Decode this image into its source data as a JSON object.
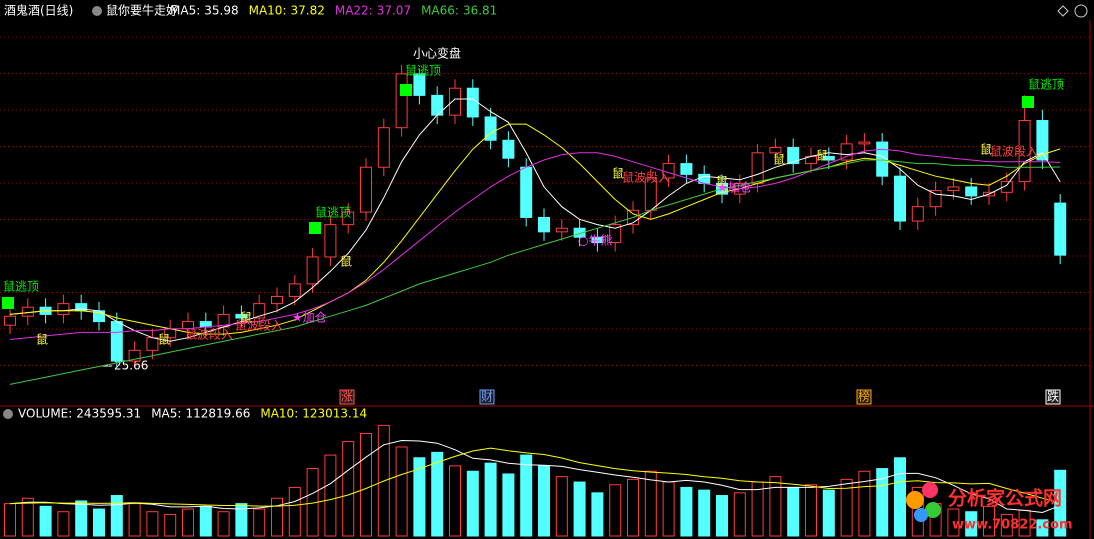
{
  "header": {
    "title": "酒鬼酒(日线)",
    "formula": "鼠你要牛走好"
  },
  "chart_data": [
    {
      "type": "candlestick",
      "open": [
        28.0,
        28.5,
        29.0,
        28.6,
        29.2,
        28.8,
        28.2,
        26.0,
        26.6,
        27.3,
        27.8,
        28.2,
        27.9,
        28.6,
        28.4,
        29.2,
        29.6,
        30.3,
        31.8,
        33.6,
        34.3,
        36.8,
        39.0,
        42.0,
        40.8,
        39.7,
        41.2,
        39.6,
        38.3,
        36.8,
        34.0,
        33.2,
        33.4,
        32.9,
        32.6,
        33.6,
        34.4,
        36.2,
        37.0,
        36.4,
        35.9,
        35.3,
        35.9,
        37.6,
        37.9,
        37.0,
        37.4,
        37.2,
        38.1,
        38.2,
        36.3,
        33.8,
        34.6,
        35.5,
        35.7,
        35.2,
        35.4,
        36.0,
        39.4,
        34.8
      ],
      "high": [
        29.0,
        29.5,
        29.5,
        29.7,
        29.7,
        29.3,
        28.7,
        27.1,
        27.8,
        28.3,
        28.7,
        28.7,
        29.1,
        29.1,
        29.7,
        30.1,
        30.8,
        32.3,
        34.1,
        34.8,
        37.3,
        39.5,
        42.5,
        42.3,
        41.3,
        41.7,
        41.7,
        40.1,
        38.8,
        37.3,
        34.5,
        33.9,
        33.9,
        33.4,
        34.1,
        34.9,
        36.7,
        37.5,
        37.5,
        36.9,
        36.4,
        36.4,
        38.1,
        38.4,
        38.4,
        37.9,
        37.9,
        38.6,
        38.7,
        38.7,
        36.8,
        35.1,
        36.0,
        36.2,
        36.2,
        35.9,
        36.5,
        40.8,
        40.0,
        35.3
      ],
      "low": [
        27.5,
        28.0,
        28.1,
        28.1,
        28.3,
        27.7,
        25.66,
        25.8,
        26.1,
        26.8,
        27.3,
        27.4,
        27.4,
        27.9,
        27.9,
        28.7,
        29.1,
        29.8,
        31.3,
        33.1,
        33.8,
        36.3,
        38.5,
        40.3,
        39.2,
        39.2,
        39.1,
        37.8,
        36.8,
        33.5,
        32.7,
        32.7,
        32.4,
        32.1,
        32.1,
        33.1,
        33.9,
        35.7,
        35.9,
        35.4,
        34.8,
        34.8,
        35.4,
        37.1,
        36.5,
        36.5,
        36.7,
        36.7,
        37.6,
        35.8,
        33.3,
        33.3,
        34.1,
        35.0,
        34.7,
        34.7,
        34.9,
        35.5,
        36.7,
        31.4
      ],
      "close": [
        28.5,
        29.0,
        28.6,
        29.2,
        28.8,
        28.2,
        26.0,
        26.6,
        27.3,
        27.8,
        28.2,
        27.9,
        28.6,
        28.4,
        29.2,
        29.6,
        30.3,
        31.8,
        33.6,
        34.3,
        36.8,
        39.0,
        42.0,
        40.8,
        39.7,
        41.2,
        39.6,
        38.3,
        37.3,
        34.0,
        33.2,
        33.4,
        32.9,
        32.6,
        33.6,
        34.4,
        36.2,
        37.0,
        36.4,
        35.9,
        35.3,
        35.9,
        37.6,
        37.9,
        37.0,
        37.4,
        37.2,
        38.1,
        38.2,
        36.3,
        33.8,
        34.6,
        35.5,
        35.7,
        35.2,
        35.4,
        36.0,
        39.4,
        37.2,
        31.9
      ],
      "ylim": [
        24.5,
        45
      ],
      "series": [
        {
          "name": "MA5:",
          "color": "#ffffff",
          "values": [
            28.6,
            28.7,
            28.8,
            28.8,
            28.9,
            28.8,
            28.2,
            27.7,
            27.3,
            27.1,
            27.3,
            27.6,
            27.9,
            28.2,
            28.5,
            28.8,
            29.3,
            30.1,
            31.0,
            32.0,
            33.3,
            35.1,
            37.1,
            38.6,
            39.7,
            40.6,
            40.6,
            39.9,
            39.3,
            37.6,
            35.7,
            34.6,
            33.9,
            33.6,
            33.4,
            33.7,
            34.4,
            35.2,
            35.9,
            36.3,
            36.2,
            36.1,
            36.4,
            36.8,
            37.1,
            37.4,
            37.6,
            37.5,
            37.6,
            37.4,
            36.7,
            35.8,
            35.3,
            35.2,
            35.0,
            35.3,
            35.8,
            37.1,
            37.6,
            35.98
          ]
        },
        {
          "name": "MA10:",
          "color": "#ffff00",
          "values": [
            28.6,
            28.7,
            28.8,
            28.8,
            28.8,
            28.7,
            28.4,
            28.2,
            28.0,
            27.8,
            27.6,
            27.5,
            27.5,
            27.6,
            27.8,
            28.0,
            28.3,
            28.8,
            29.3,
            29.8,
            30.5,
            31.5,
            32.7,
            34.0,
            35.3,
            36.6,
            37.8,
            38.7,
            39.2,
            39.2,
            38.6,
            37.9,
            37.0,
            36.0,
            35.0,
            34.2,
            33.9,
            34.2,
            34.6,
            35.0,
            35.4,
            35.6,
            35.9,
            36.2,
            36.4,
            36.6,
            36.8,
            37.1,
            37.3,
            37.2,
            36.9,
            36.6,
            36.3,
            36.1,
            35.9,
            35.8,
            36.3,
            37.0,
            37.5,
            37.82
          ]
        },
        {
          "name": "MA22:",
          "color": "#e030e0",
          "values": [
            27.2,
            27.3,
            27.4,
            27.5,
            27.6,
            27.6,
            27.6,
            27.7,
            27.7,
            27.8,
            27.8,
            27.9,
            28.0,
            28.1,
            28.2,
            28.4,
            28.6,
            28.9,
            29.3,
            29.8,
            30.4,
            31.1,
            31.9,
            32.7,
            33.5,
            34.3,
            35.0,
            35.7,
            36.3,
            36.8,
            37.2,
            37.5,
            37.6,
            37.6,
            37.4,
            37.1,
            36.8,
            36.5,
            36.2,
            35.9,
            35.7,
            35.6,
            35.7,
            35.9,
            36.2,
            36.6,
            37.0,
            37.4,
            37.7,
            37.8,
            37.7,
            37.5,
            37.4,
            37.3,
            37.2,
            37.1,
            37.1,
            37.1,
            37.1,
            37.07
          ]
        },
        {
          "name": "MA66:",
          "color": "#40c840",
          "values": [
            24.7,
            24.9,
            25.1,
            25.3,
            25.5,
            25.7,
            25.9,
            26.1,
            26.3,
            26.5,
            26.7,
            26.9,
            27.1,
            27.3,
            27.5,
            27.7,
            27.9,
            28.2,
            28.5,
            28.8,
            29.1,
            29.5,
            29.9,
            30.3,
            30.6,
            30.9,
            31.2,
            31.5,
            31.9,
            32.2,
            32.5,
            32.8,
            33.1,
            33.4,
            33.7,
            34.0,
            34.4,
            34.7,
            35.0,
            35.3,
            35.6,
            35.8,
            36.0,
            36.2,
            36.4,
            36.6,
            36.8,
            37.0,
            37.2,
            37.2,
            37.1,
            37.0,
            37.0,
            36.9,
            36.9,
            36.9,
            36.8,
            36.8,
            36.8,
            36.81
          ]
        }
      ],
      "annotations": [
        "鼠逃顶",
        "鼠逃顶",
        "鼠逃顶",
        "鼠逃顶",
        "小心变盘",
        "鼠",
        "鼠",
        "鼠",
        "鼠",
        "鼠",
        "鼠",
        "鼠",
        "鼠",
        "鼠",
        "鼠波段入",
        "鼠波段入",
        "鼠波段入",
        "鼠波段入",
        "★加仓",
        "★加仓",
        "○牛熊"
      ],
      "markers": [
        "涨",
        "财",
        "榜",
        "跌"
      ]
    },
    {
      "type": "bar",
      "name": "VOLUME:",
      "values": [
        120000,
        140000,
        110000,
        90000,
        130000,
        100000,
        150000,
        120000,
        90000,
        80000,
        100000,
        110000,
        90000,
        120000,
        100000,
        140000,
        180000,
        250000,
        300000,
        350000,
        380000,
        410000,
        330000,
        290000,
        310000,
        260000,
        240000,
        270000,
        230000,
        300000,
        260000,
        220000,
        200000,
        160000,
        190000,
        210000,
        240000,
        200000,
        180000,
        170000,
        150000,
        160000,
        200000,
        220000,
        180000,
        190000,
        170000,
        210000,
        240000,
        250000,
        290000,
        180000,
        120000,
        100000,
        90000,
        110000,
        80000,
        95000,
        60000,
        243595.31
      ],
      "ylim": [
        0,
        430000
      ],
      "series": [
        {
          "name": "MA5:",
          "color": "#ffffff",
          "values": [
            120000,
            125000,
            125000,
            120000,
            118000,
            114000,
            116000,
            122000,
            118000,
            108000,
            108000,
            110000,
            102000,
            100000,
            104000,
            112000,
            128000,
            158000,
            194000,
            244000,
            292000,
            338000,
            354000,
            352000,
            344000,
            320000,
            288000,
            282000,
            270000,
            264000,
            262000,
            258000,
            246000,
            236000,
            226000,
            218000,
            208000,
            200000,
            206000,
            200000,
            188000,
            172000,
            172000,
            180000,
            180000,
            180000,
            184000,
            194000,
            202000,
            212000,
            232000,
            232000,
            216000,
            188000,
            156000,
            138000,
            100000,
            95000,
            87000,
            112819.66
          ]
        },
        {
          "name": "MA10:",
          "color": "#ffff00",
          "values": [
            120000,
            122000,
            123000,
            122000,
            122000,
            121000,
            122000,
            123000,
            121000,
            119000,
            117000,
            115000,
            113000,
            113000,
            111000,
            111000,
            114000,
            122000,
            135000,
            152000,
            176000,
            204000,
            228000,
            249000,
            273000,
            295000,
            315000,
            326000,
            316000,
            308000,
            302000,
            289000,
            272000,
            261000,
            250000,
            242000,
            237000,
            233000,
            228000,
            220000,
            214000,
            205000,
            200000,
            198000,
            192000,
            185000,
            176000,
            177000,
            183000,
            186000,
            201000,
            205000,
            198000,
            197000,
            193000,
            195000,
            176000,
            159000,
            140000,
            123013.14
          ]
        }
      ]
    }
  ],
  "watermark": {
    "title": "分析家公式网",
    "url": "www.70822.com"
  }
}
